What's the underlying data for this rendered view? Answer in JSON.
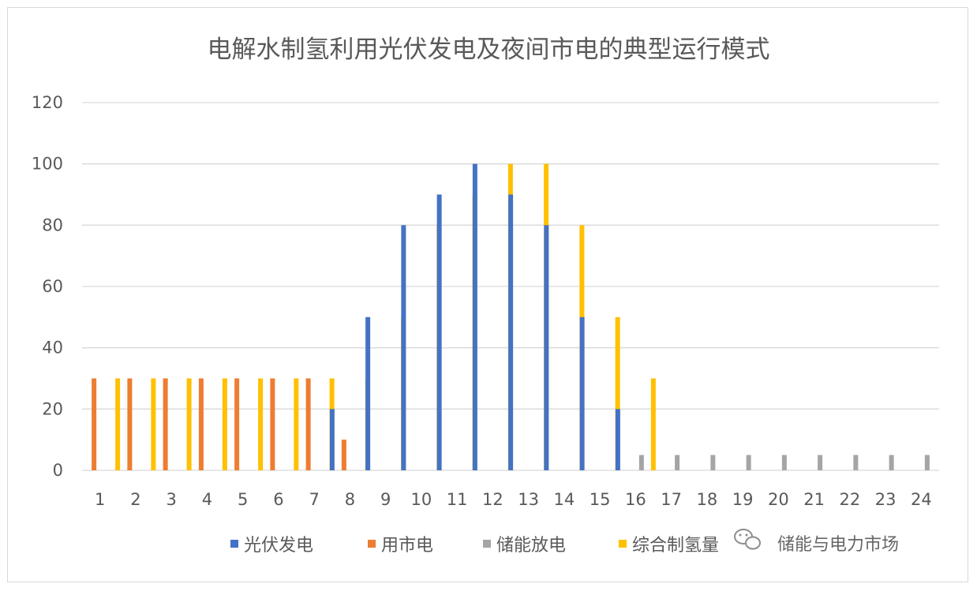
{
  "chart_data": {
    "type": "bar",
    "title": "电解水制氢利用光伏发电及夜间市电的典型运行模式",
    "xlabel": "",
    "ylabel": "",
    "ylim": [
      0,
      120
    ],
    "yticks": [
      0,
      20,
      40,
      60,
      80,
      100,
      120
    ],
    "grid": true,
    "legend_position": "bottom",
    "categories": [
      "1",
      "2",
      "3",
      "4",
      "5",
      "6",
      "7",
      "8",
      "9",
      "10",
      "11",
      "12",
      "13",
      "14",
      "15",
      "16",
      "17",
      "18",
      "19",
      "20",
      "21",
      "22",
      "23",
      "24"
    ],
    "series": [
      {
        "name": "光伏发电",
        "color": "#4472C4",
        "values": [
          0,
          0,
          0,
          0,
          0,
          0,
          0,
          20,
          50,
          80,
          90,
          100,
          90,
          80,
          50,
          20,
          0,
          0,
          0,
          0,
          0,
          0,
          0,
          0
        ]
      },
      {
        "name": "用市电",
        "color": "#ED7D31",
        "values": [
          30,
          30,
          30,
          30,
          30,
          30,
          30,
          10,
          0,
          0,
          0,
          0,
          0,
          0,
          0,
          0,
          0,
          0,
          0,
          0,
          0,
          0,
          0,
          0
        ]
      },
      {
        "name": "储能放电",
        "color": "#A5A5A5",
        "values": [
          0,
          0,
          0,
          0,
          0,
          0,
          0,
          0,
          0,
          0,
          0,
          0,
          0,
          0,
          0,
          5,
          5,
          5,
          5,
          5,
          5,
          5,
          5,
          5
        ]
      },
      {
        "name": "综合制氢量",
        "color": "#FFC000",
        "values": [
          30,
          30,
          30,
          30,
          30,
          30,
          30,
          30,
          50,
          80,
          90,
          100,
          100,
          80,
          50,
          30,
          0,
          0,
          0,
          0,
          0,
          0,
          0,
          0
        ]
      }
    ]
  },
  "watermark": {
    "text": "储能与电力市场",
    "icon": "wechat-icon"
  }
}
